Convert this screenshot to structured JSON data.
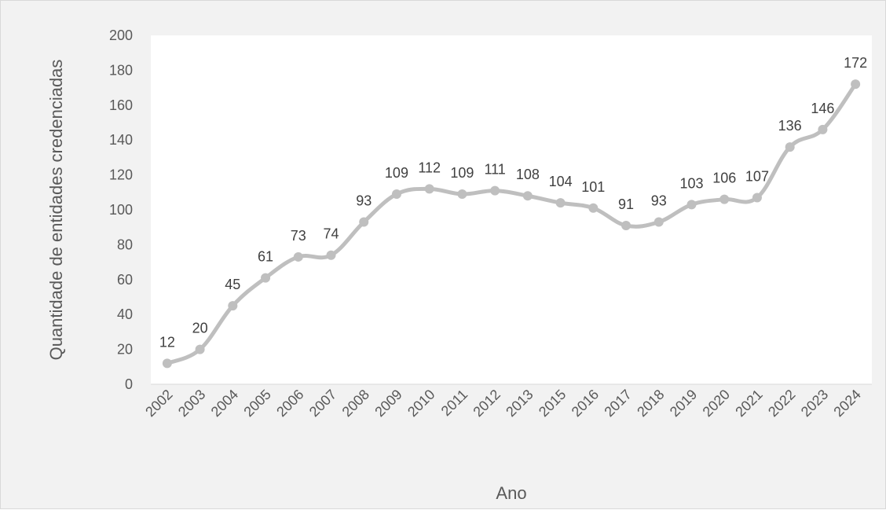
{
  "chart_data": {
    "type": "line",
    "title": "",
    "xlabel": "Ano",
    "ylabel": "Quantidade de entidades credenciadas",
    "ylim": [
      0,
      200
    ],
    "yticks": [
      0,
      20,
      40,
      60,
      80,
      100,
      120,
      140,
      160,
      180,
      200
    ],
    "categories": [
      "2002",
      "2003",
      "2004",
      "2005",
      "2006",
      "2007",
      "2008",
      "2009",
      "2010",
      "2011",
      "2012",
      "2013",
      "2015",
      "2016",
      "2017",
      "2018",
      "2019",
      "2020",
      "2021",
      "2022",
      "2023",
      "2024"
    ],
    "series": [
      {
        "values": [
          12,
          20,
          45,
          61,
          73,
          74,
          93,
          109,
          112,
          109,
          111,
          108,
          104,
          101,
          91,
          93,
          103,
          106,
          107,
          136,
          146,
          172
        ],
        "color": "#bfbfbf",
        "data_labels": true,
        "smooth": true
      }
    ],
    "grid": false,
    "legend": "none"
  }
}
